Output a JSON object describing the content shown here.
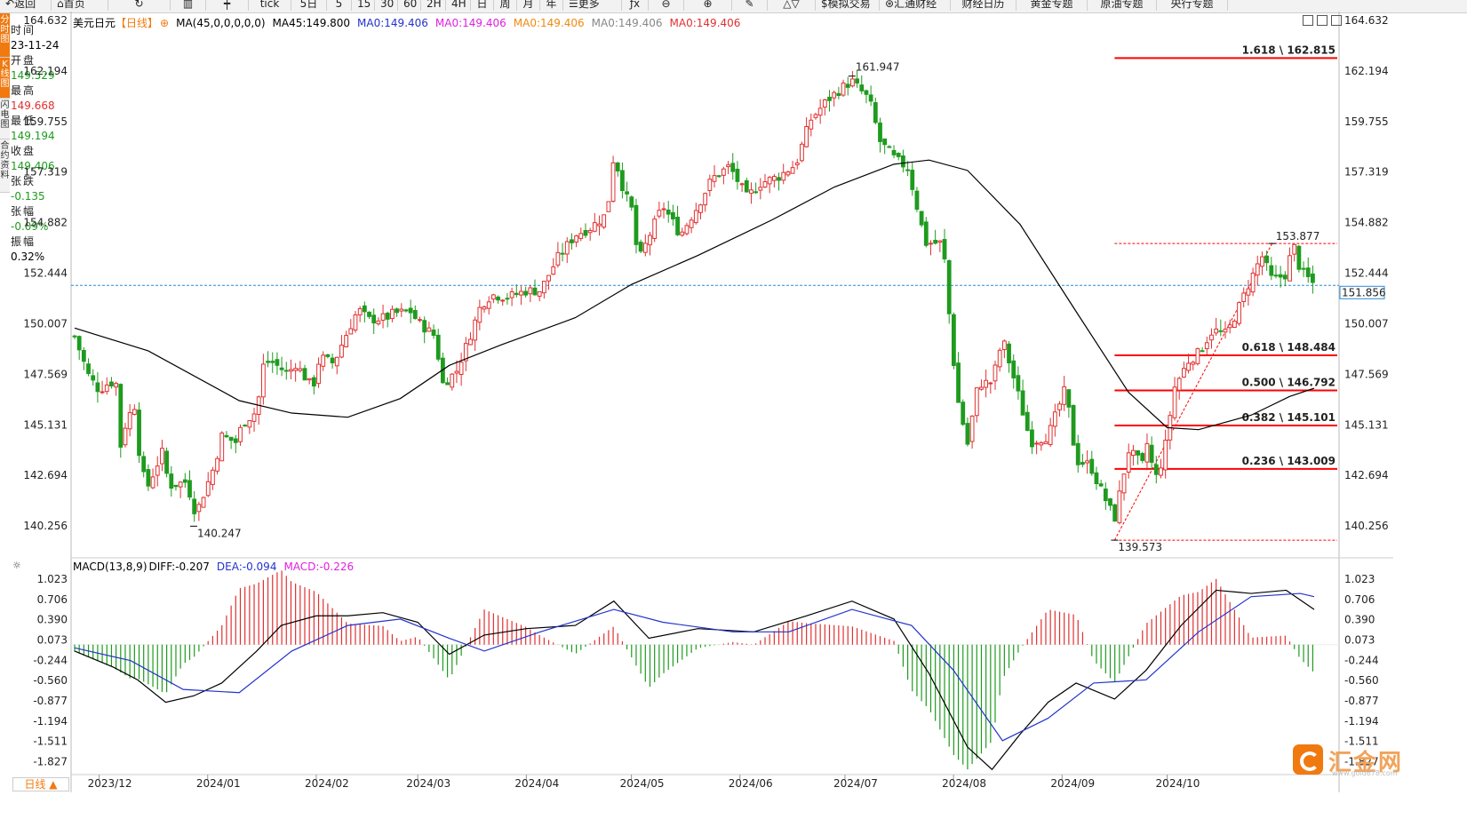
{
  "toolbar": {
    "items": [
      "返回",
      "首页",
      "",
      "",
      "",
      "tick",
      "5日",
      "5",
      "15",
      "30",
      "60",
      "2H",
      "4H",
      "日",
      "周",
      "月",
      "年",
      "更多",
      "",
      "",
      "",
      "",
      "",
      "$模拟交易",
      "汇通财经",
      "财经日历",
      "黄金专题",
      "原油专题",
      "央行专题"
    ]
  },
  "leftbar": {
    "items": [
      "分时图",
      "K线图",
      "闪电图",
      "合约资料"
    ]
  },
  "info": {
    "time_label": "时间",
    "time": "23-11-24",
    "open_label": "开盘",
    "open": "149.529",
    "high_label": "最高",
    "high": "149.668",
    "low_label": "最低",
    "low": "149.194",
    "close_label": "收盘",
    "close": "149.406",
    "change_label": "张跌",
    "change": "-0.135",
    "pct_label": "张幅",
    "pct": "-0.09%",
    "amp_label": "振幅",
    "amp": "0.32%"
  },
  "legend": {
    "symbol": "美元日元",
    "period": "【日线】",
    "ma_param": "MA(45,0,0,0,0,0)",
    "ma45": "MA45:149.800",
    "ma0_a": "MA0:149.406",
    "ma0_b": "MA0:149.406",
    "ma0_c": "MA0:149.406",
    "ma0_d": "MA0:149.406",
    "ma0_e": "MA0:149.406"
  },
  "macd_legend": {
    "param": "MACD(13,8,9)",
    "diff": "DIFF:-0.207",
    "dea": "DEA:-0.094",
    "macd": "MACD:-0.226"
  },
  "period_button": "日线 ▲",
  "logo": {
    "name": "汇金网",
    "url": "www.gold678.com"
  },
  "colors": {
    "up": "#e03030",
    "down": "#1e9b1e",
    "ma": "#000000",
    "dea": "#2233cc",
    "fib": "#ff0000",
    "accent": "#f07a10"
  },
  "chart_data": [
    {
      "type": "candlestick",
      "title": "美元日元 日线",
      "y_ticks": [
        140.256,
        142.694,
        145.131,
        147.569,
        150.007,
        152.444,
        154.882,
        157.319,
        159.755,
        162.194,
        164.632
      ],
      "ylim": [
        138.72,
        165.06
      ],
      "x_labels": [
        "2023/12",
        "2024/01",
        "2024/02",
        "2024/03",
        "2024/04",
        "2024/05",
        "2024/06",
        "2024/07",
        "2024/08",
        "2024/09",
        "2024/10"
      ],
      "last_price": "151.856",
      "last_value": 151.856,
      "high_marker": {
        "label": "161.947",
        "value": 161.947,
        "date": "2024-07-03"
      },
      "low_marker": {
        "label": "140.247",
        "value": 140.247,
        "date": "2023-12-28"
      },
      "swing_low_marker": {
        "label": "139.573",
        "value": 139.573,
        "date": "2024-09-16"
      },
      "swing_high_marker": {
        "label": "153.877",
        "value": 153.877,
        "date": "2024-10-31"
      },
      "fibonacci": [
        {
          "label": "1.618 \\ 162.815",
          "value": 162.815
        },
        {
          "label": "0.618 \\ 148.484",
          "value": 148.484
        },
        {
          "label": "0.500 \\ 146.792",
          "value": 146.792
        },
        {
          "label": "0.382 \\ 145.101",
          "value": 145.101
        },
        {
          "label": "0.236 \\ 143.009",
          "value": 143.009
        }
      ],
      "close_path": [
        [
          "2023-11-24",
          149.4
        ],
        [
          "2023-11-28",
          147.5
        ],
        [
          "2023-12-01",
          146.8
        ],
        [
          "2023-12-04",
          147.2
        ],
        [
          "2023-12-06",
          147.1
        ],
        [
          "2023-12-07",
          144.0
        ],
        [
          "2023-12-08",
          144.9
        ],
        [
          "2023-12-11",
          146.2
        ],
        [
          "2023-12-13",
          142.9
        ],
        [
          "2023-12-15",
          142.2
        ],
        [
          "2023-12-19",
          143.8
        ],
        [
          "2023-12-21",
          142.2
        ],
        [
          "2023-12-26",
          142.4
        ],
        [
          "2023-12-28",
          141.1
        ],
        [
          "2023-12-29",
          141.0
        ],
        [
          "2024-01-03",
          143.2
        ],
        [
          "2024-01-05",
          144.6
        ],
        [
          "2024-01-09",
          144.3
        ],
        [
          "2024-01-11",
          145.2
        ],
        [
          "2024-01-15",
          145.8
        ],
        [
          "2024-01-17",
          148.1
        ],
        [
          "2024-01-19",
          148.2
        ],
        [
          "2024-01-24",
          147.6
        ],
        [
          "2024-01-26",
          148.1
        ],
        [
          "2024-01-31",
          146.9
        ],
        [
          "2024-02-02",
          148.4
        ],
        [
          "2024-02-06",
          148.1
        ],
        [
          "2024-02-09",
          149.3
        ],
        [
          "2024-02-13",
          150.7
        ],
        [
          "2024-02-16",
          150.2
        ],
        [
          "2024-02-21",
          150.3
        ],
        [
          "2024-02-23",
          150.5
        ],
        [
          "2024-02-28",
          150.6
        ],
        [
          "2024-03-01",
          150.1
        ],
        [
          "2024-03-06",
          149.4
        ],
        [
          "2024-03-08",
          147.1
        ],
        [
          "2024-03-12",
          147.7
        ],
        [
          "2024-03-15",
          149.0
        ],
        [
          "2024-03-19",
          150.9
        ],
        [
          "2024-03-22",
          151.4
        ],
        [
          "2024-03-27",
          151.3
        ],
        [
          "2024-04-01",
          151.6
        ],
        [
          "2024-04-05",
          151.6
        ],
        [
          "2024-04-10",
          153.2
        ],
        [
          "2024-04-15",
          154.3
        ],
        [
          "2024-04-19",
          154.6
        ],
        [
          "2024-04-24",
          155.3
        ],
        [
          "2024-04-26",
          158.2
        ],
        [
          "2024-04-29",
          156.3
        ],
        [
          "2024-05-01",
          155.6
        ],
        [
          "2024-05-03",
          153.0
        ],
        [
          "2024-05-07",
          154.6
        ],
        [
          "2024-05-10",
          155.7
        ],
        [
          "2024-05-15",
          154.3
        ],
        [
          "2024-05-20",
          155.7
        ],
        [
          "2024-05-24",
          157.0
        ],
        [
          "2024-05-29",
          157.6
        ],
        [
          "2024-06-03",
          156.1
        ],
        [
          "2024-06-07",
          156.8
        ],
        [
          "2024-06-12",
          157.1
        ],
        [
          "2024-06-17",
          157.7
        ],
        [
          "2024-06-21",
          159.8
        ],
        [
          "2024-06-26",
          160.8
        ],
        [
          "2024-07-01",
          161.5
        ],
        [
          "2024-07-03",
          161.7
        ],
        [
          "2024-07-08",
          160.8
        ],
        [
          "2024-07-11",
          158.8
        ],
        [
          "2024-07-15",
          158.0
        ],
        [
          "2024-07-19",
          157.5
        ],
        [
          "2024-07-24",
          153.9
        ],
        [
          "2024-07-29",
          153.9
        ],
        [
          "2024-07-31",
          150.0
        ],
        [
          "2024-08-02",
          146.5
        ],
        [
          "2024-08-05",
          144.2
        ],
        [
          "2024-08-08",
          147.1
        ],
        [
          "2024-08-12",
          147.2
        ],
        [
          "2024-08-15",
          149.3
        ],
        [
          "2024-08-19",
          146.9
        ],
        [
          "2024-08-23",
          144.3
        ],
        [
          "2024-08-28",
          144.6
        ],
        [
          "2024-09-02",
          146.9
        ],
        [
          "2024-09-05",
          143.4
        ],
        [
          "2024-09-09",
          143.2
        ],
        [
          "2024-09-11",
          142.4
        ],
        [
          "2024-09-16",
          140.6
        ],
        [
          "2024-09-18",
          142.3
        ],
        [
          "2024-09-20",
          143.9
        ],
        [
          "2024-09-24",
          143.2
        ],
        [
          "2024-09-26",
          144.8
        ],
        [
          "2024-09-27",
          142.2
        ],
        [
          "2024-09-30",
          143.6
        ],
        [
          "2024-10-03",
          146.9
        ],
        [
          "2024-10-07",
          148.2
        ],
        [
          "2024-10-10",
          148.6
        ],
        [
          "2024-10-14",
          149.7
        ],
        [
          "2024-10-18",
          149.5
        ],
        [
          "2024-10-22",
          151.0
        ],
        [
          "2024-10-24",
          151.8
        ],
        [
          "2024-10-28",
          153.3
        ],
        [
          "2024-10-31",
          152.1
        ],
        [
          "2024-11-04",
          152.4
        ],
        [
          "2024-11-06",
          153.9
        ],
        [
          "2024-11-08",
          152.6
        ],
        [
          "2024-11-12",
          151.9
        ]
      ],
      "ma45": [
        [
          "2023-11-24",
          149.8
        ],
        [
          "2023-12-15",
          148.7
        ],
        [
          "2024-01-10",
          146.3
        ],
        [
          "2024-01-25",
          145.7
        ],
        [
          "2024-02-10",
          145.5
        ],
        [
          "2024-02-25",
          146.4
        ],
        [
          "2024-03-10",
          148.0
        ],
        [
          "2024-03-25",
          149.0
        ],
        [
          "2024-04-15",
          150.3
        ],
        [
          "2024-05-01",
          151.9
        ],
        [
          "2024-05-20",
          153.3
        ],
        [
          "2024-06-10",
          155.0
        ],
        [
          "2024-06-28",
          156.6
        ],
        [
          "2024-07-15",
          157.7
        ],
        [
          "2024-07-25",
          157.9
        ],
        [
          "2024-08-05",
          157.4
        ],
        [
          "2024-08-20",
          154.8
        ],
        [
          "2024-09-05",
          150.6
        ],
        [
          "2024-09-20",
          146.7
        ],
        [
          "2024-10-01",
          145.0
        ],
        [
          "2024-10-10",
          144.9
        ],
        [
          "2024-10-25",
          145.6
        ],
        [
          "2024-11-05",
          146.5
        ],
        [
          "2024-11-12",
          146.9
        ]
      ]
    },
    {
      "type": "macd",
      "y_ticks": [
        1.023,
        0.706,
        0.39,
        0.073,
        -0.244,
        -0.56,
        -0.877,
        -1.194,
        -1.511,
        -1.827
      ],
      "ylim": [
        -2.03,
        1.12
      ],
      "diff": [
        [
          "2023-11-24",
          -0.1
        ],
        [
          "2023-12-05",
          -0.35
        ],
        [
          "2023-12-12",
          -0.55
        ],
        [
          "2023-12-20",
          -0.9
        ],
        [
          "2023-12-28",
          -0.8
        ],
        [
          "2024-01-05",
          -0.6
        ],
        [
          "2024-01-15",
          -0.1
        ],
        [
          "2024-01-22",
          0.3
        ],
        [
          "2024-02-01",
          0.45
        ],
        [
          "2024-02-10",
          0.45
        ],
        [
          "2024-02-20",
          0.5
        ],
        [
          "2024-03-01",
          0.35
        ],
        [
          "2024-03-10",
          -0.15
        ],
        [
          "2024-03-20",
          0.15
        ],
        [
          "2024-04-01",
          0.25
        ],
        [
          "2024-04-15",
          0.3
        ],
        [
          "2024-04-26",
          0.68
        ],
        [
          "2024-05-06",
          0.1
        ],
        [
          "2024-05-20",
          0.25
        ],
        [
          "2024-06-05",
          0.2
        ],
        [
          "2024-06-20",
          0.45
        ],
        [
          "2024-07-03",
          0.68
        ],
        [
          "2024-07-15",
          0.4
        ],
        [
          "2024-07-25",
          -0.45
        ],
        [
          "2024-08-05",
          -1.6
        ],
        [
          "2024-08-12",
          -1.95
        ],
        [
          "2024-08-20",
          -1.4
        ],
        [
          "2024-08-28",
          -0.9
        ],
        [
          "2024-09-05",
          -0.6
        ],
        [
          "2024-09-16",
          -0.85
        ],
        [
          "2024-09-25",
          -0.4
        ],
        [
          "2024-10-05",
          0.3
        ],
        [
          "2024-10-15",
          0.85
        ],
        [
          "2024-10-25",
          0.8
        ],
        [
          "2024-11-04",
          0.85
        ],
        [
          "2024-11-12",
          0.55
        ]
      ],
      "dea": [
        [
          "2023-11-24",
          -0.05
        ],
        [
          "2023-12-10",
          -0.25
        ],
        [
          "2023-12-25",
          -0.7
        ],
        [
          "2024-01-10",
          -0.75
        ],
        [
          "2024-01-25",
          -0.1
        ],
        [
          "2024-02-10",
          0.3
        ],
        [
          "2024-02-25",
          0.4
        ],
        [
          "2024-03-10",
          0.1
        ],
        [
          "2024-03-20",
          -0.1
        ],
        [
          "2024-04-05",
          0.2
        ],
        [
          "2024-04-26",
          0.55
        ],
        [
          "2024-05-10",
          0.35
        ],
        [
          "2024-05-30",
          0.2
        ],
        [
          "2024-06-15",
          0.2
        ],
        [
          "2024-07-03",
          0.55
        ],
        [
          "2024-07-20",
          0.3
        ],
        [
          "2024-08-01",
          -0.4
        ],
        [
          "2024-08-15",
          -1.5
        ],
        [
          "2024-08-28",
          -1.15
        ],
        [
          "2024-09-10",
          -0.6
        ],
        [
          "2024-09-25",
          -0.55
        ],
        [
          "2024-10-10",
          0.2
        ],
        [
          "2024-10-25",
          0.75
        ],
        [
          "2024-11-08",
          0.8
        ],
        [
          "2024-11-12",
          0.75
        ]
      ]
    }
  ]
}
